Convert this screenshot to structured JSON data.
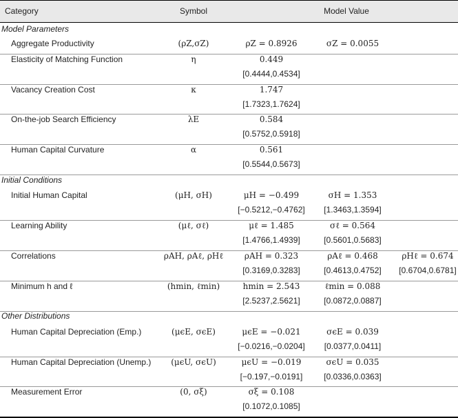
{
  "header": {
    "category": "Category",
    "symbol": "Symbol",
    "value": "Model Value"
  },
  "sections": [
    {
      "title": "Model Parameters",
      "rows": [
        {
          "label": "Aggregate Productivity",
          "symbol": "(ρZ,σZ)",
          "v1": "ρZ = 0.8926",
          "v2": "σZ = 0.0055"
        },
        {
          "label": "Elasticity of Matching Function",
          "symbol": "η",
          "v1": "0.449",
          "ci1": "[0.4444,0.4534]"
        },
        {
          "label": "Vacancy Creation Cost",
          "symbol": "κ",
          "v1": "1.747",
          "ci1": "[1.7323,1.7624]"
        },
        {
          "label": "On-the-job Search Efficiency",
          "symbol": "λE",
          "v1": "0.584",
          "ci1": "[0.5752,0.5918]"
        },
        {
          "label": "Human Capital Curvature",
          "symbol": "α",
          "v1": "0.561",
          "ci1": "[0.5544,0.5673]"
        }
      ]
    },
    {
      "title": "Initial Conditions",
      "rows": [
        {
          "label": "Initial Human Capital",
          "symbol": "(μH, σH)",
          "v1": "μH = −0.499",
          "ci1": "[−0.5212,−0.4762]",
          "v2": "σH = 1.353",
          "ci2": "[1.3463,1.3594]"
        },
        {
          "label": "Learning Ability",
          "symbol": "(μℓ, σℓ)",
          "v1": "μℓ = 1.485",
          "ci1": "[1.4766,1.4939]",
          "v2": "σℓ = 0.564",
          "ci2": "[0.5601,0.5683]"
        },
        {
          "label": "Correlations",
          "symbol": "ρAH, ρAℓ, ρHℓ",
          "v1": "ρAH = 0.323",
          "ci1": "[0.3169,0.3283]",
          "v2": "ρAℓ = 0.468",
          "ci2": "[0.4613,0.4752]",
          "v3": "ρHℓ = 0.674",
          "ci3": "[0.6704,0.6781]"
        },
        {
          "label": "Minimum h and ℓ",
          "symbol": "(hmin, ℓmin)",
          "v1": "hmin = 2.543",
          "ci1": "[2.5237,2.5621]",
          "v2": "ℓmin = 0.088",
          "ci2": "[0.0872,0.0887]"
        }
      ]
    },
    {
      "title": "Other Distributions",
      "rows": [
        {
          "label": "Human Capital Depreciation (Emp.)",
          "symbol": "(μϵE, σϵE)",
          "v1": "μϵE = −0.021",
          "ci1": "[−0.0216,−0.0204]",
          "v2": "σϵE = 0.039",
          "ci2": "[0.0377,0.0411]"
        },
        {
          "label": "Human Capital Depreciation (Unemp.)",
          "symbol": "(μϵU, σϵU)",
          "v1": "μϵU = −0.019",
          "ci1": "[−0.197,−0.0191]",
          "v2": "σϵU = 0.035",
          "ci2": "[0.0336,0.0363]"
        },
        {
          "label": "Measurement Error",
          "symbol": "(0, σξ)",
          "v1": "σξ = 0.108",
          "ci1": "[0.1072,0.1085]"
        }
      ]
    }
  ]
}
